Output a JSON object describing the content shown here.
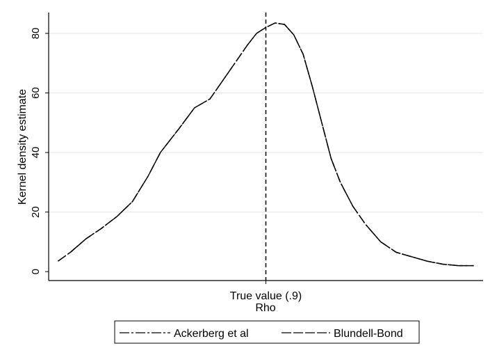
{
  "chart_data": {
    "type": "line",
    "title": "",
    "xlabel": "Rho",
    "ylabel": "Kernel density estimate",
    "x_tick_label": "True value (.9)",
    "ylim": [
      -3,
      87
    ],
    "yticks": [
      0,
      20,
      40,
      60,
      80
    ],
    "grid": true,
    "legend_position": "bottom",
    "series": [
      {
        "name": "Ackerberg et al",
        "dash": "long-dash-dot",
        "color": "#000000",
        "x": [
          0.833,
          0.837,
          0.842,
          0.847,
          0.852,
          0.857,
          0.862,
          0.866,
          0.872,
          0.877,
          0.882,
          0.886,
          0.89,
          0.894,
          0.897,
          0.9,
          0.903,
          0.906,
          0.909,
          0.912,
          0.915,
          0.918,
          0.921,
          0.924,
          0.928,
          0.932,
          0.937,
          0.942,
          0.947,
          0.952,
          0.957,
          0.962,
          0.967
        ],
        "y": [
          3.5,
          6.5,
          11,
          14.5,
          18.5,
          23.5,
          32,
          40,
          48,
          55,
          58,
          64,
          70,
          76,
          80,
          82,
          83.5,
          83,
          79.5,
          73,
          62,
          50,
          38,
          30,
          22,
          16,
          10,
          6.5,
          5,
          3.5,
          2.5,
          2,
          2
        ]
      },
      {
        "name": "Blundell-Bond",
        "dash": "long-dash",
        "color": "#000000",
        "x": [
          0.833,
          0.837,
          0.842,
          0.847,
          0.852,
          0.857,
          0.862,
          0.866,
          0.872,
          0.877,
          0.882,
          0.886,
          0.89,
          0.894,
          0.897,
          0.9,
          0.903,
          0.906,
          0.909,
          0.912,
          0.915,
          0.918,
          0.921,
          0.924,
          0.928,
          0.932,
          0.937,
          0.942,
          0.947,
          0.952,
          0.957,
          0.962,
          0.967
        ],
        "y": [
          3.5,
          6.5,
          11,
          14.5,
          18.5,
          23.5,
          32,
          40,
          48,
          55,
          58,
          64,
          70,
          76,
          80,
          82,
          83.5,
          83,
          79.5,
          73,
          62,
          50,
          38,
          30,
          22,
          16,
          10,
          6.5,
          5,
          3.5,
          2.5,
          2,
          2
        ]
      }
    ],
    "reference_line": {
      "x": 0.9,
      "style": "dashed",
      "color": "#000000"
    },
    "xlim": [
      0.83,
      0.97
    ]
  }
}
